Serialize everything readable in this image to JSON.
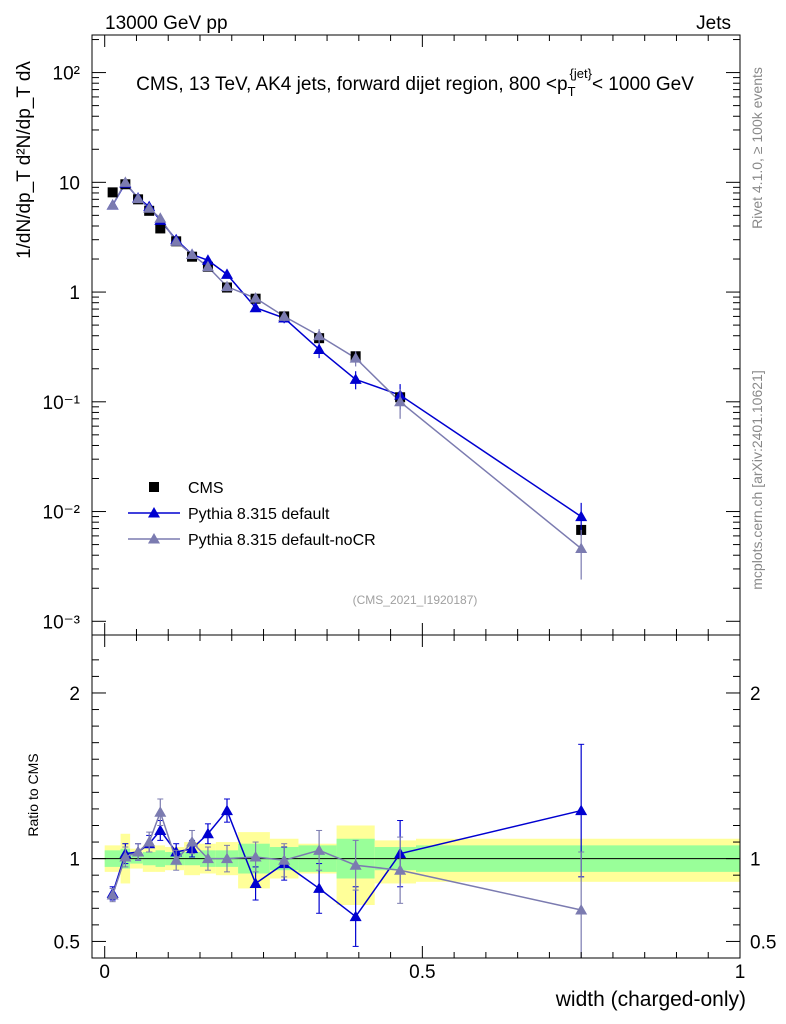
{
  "header": {
    "left": "13000 GeV pp",
    "right": "Jets"
  },
  "title": "CMS, 13 TeV, AK4 jets, forward dijet region, 800 <p_T^{jet}< 1000 GeV",
  "side_labels": {
    "rivet": "Rivet 4.1.0, ≥ 100k events",
    "mcplots": "mcplots.cern.ch [arXiv:2401.10621]"
  },
  "analysis_tag": "(CMS_2021_I1920187)",
  "chart_data": [
    {
      "type": "scatter",
      "panel": "main",
      "yscale": "log",
      "xlim": [
        -0.02,
        1.0
      ],
      "ylim": [
        0.00075,
        220
      ],
      "ylabel": "1/dN/dp_T  d²N/dp_T dλ",
      "yticks": [
        {
          "value": 0.001,
          "label": "10⁻³"
        },
        {
          "value": 0.01,
          "label": "10⁻²"
        },
        {
          "value": 0.1,
          "label": "10⁻¹"
        },
        {
          "value": 1,
          "label": "1"
        },
        {
          "value": 10,
          "label": "10"
        },
        {
          "value": 100,
          "label": "10²"
        }
      ],
      "series": [
        {
          "name": "CMS",
          "color": "#000000",
          "marker": "square",
          "x": [
            0.0125,
            0.0325,
            0.0525,
            0.07,
            0.0875,
            0.1125,
            0.1375,
            0.1625,
            0.1925,
            0.2375,
            0.2825,
            0.3375,
            0.395,
            0.465,
            0.75
          ],
          "y": [
            8.1,
            9.6,
            7.0,
            5.5,
            3.8,
            2.9,
            2.1,
            1.7,
            1.1,
            0.87,
            0.6,
            0.38,
            0.26,
            0.11,
            0.0068
          ]
        },
        {
          "name": "Pythia 8.315 default",
          "color": "#0000d0",
          "marker": "triangle",
          "x": [
            0.0125,
            0.0325,
            0.0525,
            0.07,
            0.0875,
            0.1125,
            0.1375,
            0.1625,
            0.1925,
            0.2375,
            0.2825,
            0.3375,
            0.395,
            0.465,
            0.75
          ],
          "y": [
            6.2,
            9.8,
            7.2,
            6.0,
            4.5,
            3.0,
            2.2,
            1.95,
            1.45,
            0.72,
            0.58,
            0.3,
            0.16,
            0.115,
            0.009
          ],
          "yerr": [
            0.2,
            0.4,
            0.3,
            0.3,
            0.2,
            0.15,
            0.12,
            0.12,
            0.12,
            0.06,
            0.06,
            0.05,
            0.03,
            0.03,
            0.003
          ]
        },
        {
          "name": "Pythia 8.315 default-noCR",
          "color": "#7b7bb0",
          "marker": "triangle",
          "x": [
            0.0125,
            0.0325,
            0.0525,
            0.07,
            0.0875,
            0.1125,
            0.1375,
            0.1625,
            0.1925,
            0.2375,
            0.2825,
            0.3375,
            0.395,
            0.465,
            0.75
          ],
          "y": [
            6.2,
            10.0,
            7.1,
            5.8,
            4.7,
            2.9,
            2.2,
            1.7,
            1.12,
            0.88,
            0.6,
            0.4,
            0.25,
            0.1,
            0.0046
          ],
          "yerr": [
            0.2,
            0.4,
            0.3,
            0.3,
            0.25,
            0.15,
            0.12,
            0.1,
            0.1,
            0.07,
            0.06,
            0.06,
            0.04,
            0.03,
            0.0022
          ]
        }
      ],
      "legend": {
        "placement": "bottom-left",
        "entries": [
          "CMS",
          "Pythia 8.315 default",
          "Pythia 8.315 default-noCR"
        ]
      }
    },
    {
      "type": "scatter",
      "panel": "ratio",
      "xlim": [
        -0.02,
        1.0
      ],
      "ylim": [
        0.4,
        2.35
      ],
      "xlabel": "width (charged-only)",
      "ylabel": "Ratio to CMS",
      "xticks": [
        {
          "value": 0,
          "label": "0"
        },
        {
          "value": 0.5,
          "label": "0.5"
        },
        {
          "value": 1,
          "label": "1"
        }
      ],
      "yticks": [
        {
          "value": 0.5,
          "label": "0.5"
        },
        {
          "value": 1,
          "label": "1"
        },
        {
          "value": 2,
          "label": "2"
        }
      ],
      "bands": {
        "edges": [
          0.0,
          0.025,
          0.04,
          0.06,
          0.08,
          0.095,
          0.125,
          0.15,
          0.175,
          0.21,
          0.26,
          0.305,
          0.365,
          0.425,
          0.49,
          1.0
        ],
        "inner": [
          0.95,
          1.05,
          0.94,
          1.06,
          0.97,
          1.03,
          0.96,
          1.04,
          0.95,
          1.05,
          0.96,
          1.04,
          0.96,
          1.04,
          0.95,
          1.05,
          0.95,
          1.05,
          0.91,
          1.09,
          0.93,
          1.07,
          0.92,
          1.08,
          0.88,
          1.12,
          0.93,
          1.07,
          0.92,
          1.08
        ],
        "outer": [
          0.92,
          1.08,
          0.85,
          1.15,
          0.94,
          1.06,
          0.92,
          1.08,
          0.92,
          1.08,
          0.93,
          1.07,
          0.9,
          1.1,
          0.91,
          1.09,
          0.9,
          1.1,
          0.82,
          1.16,
          0.88,
          1.12,
          0.91,
          1.09,
          0.72,
          1.2,
          0.85,
          1.11,
          0.86,
          1.12
        ]
      },
      "series": [
        {
          "name": "Pythia 8.315 default",
          "color": "#0000d0",
          "x": [
            0.0125,
            0.0325,
            0.0525,
            0.07,
            0.0875,
            0.1125,
            0.1375,
            0.1625,
            0.1925,
            0.2375,
            0.2825,
            0.3375,
            0.395,
            0.465,
            0.75
          ],
          "y": [
            0.79,
            1.03,
            1.04,
            1.09,
            1.17,
            1.04,
            1.06,
            1.15,
            1.29,
            0.85,
            0.97,
            0.82,
            0.65,
            1.03,
            1.29
          ],
          "yerr": [
            0.04,
            0.06,
            0.05,
            0.05,
            0.06,
            0.05,
            0.05,
            0.06,
            0.07,
            0.1,
            0.1,
            0.15,
            0.18,
            0.2,
            0.4
          ]
        },
        {
          "name": "Pythia 8.315 default-noCR",
          "color": "#7b7bb0",
          "x": [
            0.0125,
            0.0325,
            0.0525,
            0.07,
            0.0875,
            0.1125,
            0.1375,
            0.1625,
            0.1925,
            0.2375,
            0.2825,
            0.3375,
            0.395,
            0.465,
            0.75
          ],
          "y": [
            0.78,
            1.01,
            1.04,
            1.1,
            1.28,
            0.99,
            1.1,
            1.0,
            1.0,
            1.01,
            0.99,
            1.05,
            0.96,
            0.93,
            0.69
          ],
          "yerr": [
            0.04,
            0.06,
            0.05,
            0.06,
            0.08,
            0.06,
            0.07,
            0.07,
            0.08,
            0.09,
            0.1,
            0.12,
            0.15,
            0.2,
            0.35
          ]
        }
      ]
    }
  ]
}
